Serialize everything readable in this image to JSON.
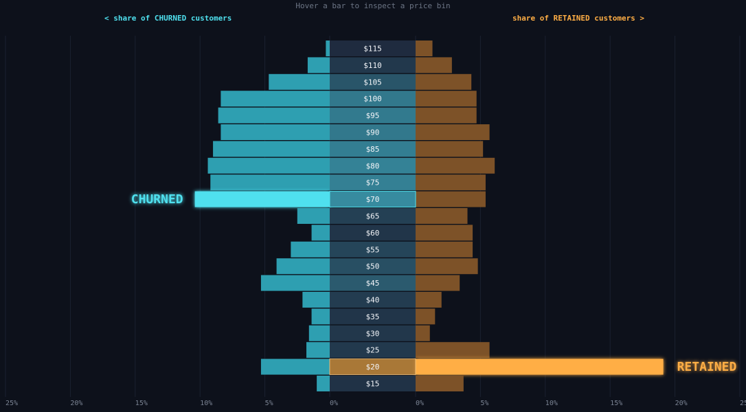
{
  "header": {
    "hint": "Hover a bar to inspect a price bin",
    "left_title": "< share of CHURNED customers",
    "right_title": "share of RETAINED customers >"
  },
  "colors": {
    "background": "#0d111b",
    "churned": "#2e9fb1",
    "churned_highlight": "#4fe0ee",
    "retained": "#7d5228",
    "retained_highlight": "#ffae45",
    "grid": "#1b2130"
  },
  "chart_data": {
    "type": "bar",
    "orientation": "horizontal-butterfly",
    "categories": [
      "$115",
      "$110",
      "$105",
      "$100",
      "$95",
      "$90",
      "$85",
      "$80",
      "$75",
      "$70",
      "$65",
      "$60",
      "$55",
      "$50",
      "$45",
      "$40",
      "$35",
      "$30",
      "$25",
      "$20",
      "$15"
    ],
    "series": [
      {
        "side": "left",
        "values": [
          0.3,
          1.7,
          4.7,
          8.4,
          8.6,
          8.4,
          9.0,
          9.4,
          9.2,
          10.4,
          2.5,
          1.4,
          3.0,
          4.1,
          5.3,
          2.1,
          1.4,
          1.6,
          1.8,
          5.3,
          1.0
        ]
      },
      {
        "side": "right",
        "values": [
          1.3,
          2.8,
          4.3,
          4.7,
          4.7,
          5.7,
          5.2,
          6.1,
          5.4,
          5.4,
          4.0,
          4.4,
          4.4,
          4.8,
          3.4,
          2.0,
          1.5,
          1.1,
          5.7,
          19.1,
          3.7
        ]
      }
    ],
    "highlight": {
      "left_category": "$70",
      "left_label": "CHURNED",
      "right_category": "$20",
      "right_label": "RETAINED"
    },
    "xlim": [
      0,
      25
    ],
    "left_ticks": [
      "25%",
      "20%",
      "15%",
      "10%",
      "5%",
      "0%"
    ],
    "right_ticks": [
      "0%",
      "5%",
      "10%",
      "15%",
      "20%",
      "25%"
    ],
    "grid": true
  }
}
